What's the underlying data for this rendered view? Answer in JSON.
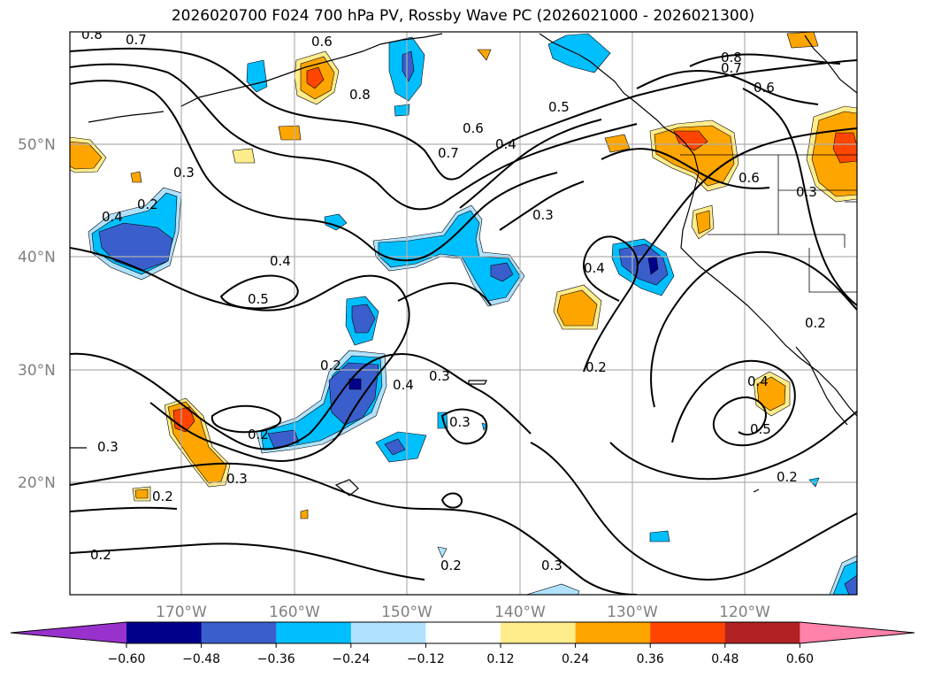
{
  "title": "2026020700 F024 700 hPa PV, Rossby Wave PC (2026021000 - 2026021300)",
  "lat_labels": [
    "50°N",
    "40°N",
    "30°N",
    "20°N"
  ],
  "lon_labels": [
    "170°W",
    "160°W",
    "150°W",
    "140°W",
    "130°W",
    "120°W"
  ],
  "colorbar": {
    "ticks": [
      "−0.60",
      "−0.48",
      "−0.36",
      "−0.24",
      "−0.12",
      "0.12",
      "0.24",
      "0.36",
      "0.48",
      "0.60"
    ],
    "colors": [
      "#9932cc",
      "#00008b",
      "#3a5fcd",
      "#00bfff",
      "#b0e2ff",
      "#ffffff",
      "#ffec8b",
      "#ffa500",
      "#ff4500",
      "#b22222",
      "#ff82ab"
    ]
  },
  "contour_labels": [
    "0.8",
    "0.7",
    "0.6",
    "0.8",
    "0.5",
    "0.6",
    "0.4",
    "0.7",
    "0.3",
    "0.2",
    "0.4",
    "0.4",
    "0.5",
    "0.3",
    "0.4",
    "0.6",
    "0.3",
    "0.8",
    "0.7",
    "0.6",
    "0.2",
    "0.2",
    "0.4",
    "0.3",
    "0.2",
    "0.3",
    "0.2",
    "0.3",
    "0.3",
    "0.2",
    "0.4",
    "0.5",
    "0.2",
    "0.2",
    "0.3",
    "0.2"
  ]
}
